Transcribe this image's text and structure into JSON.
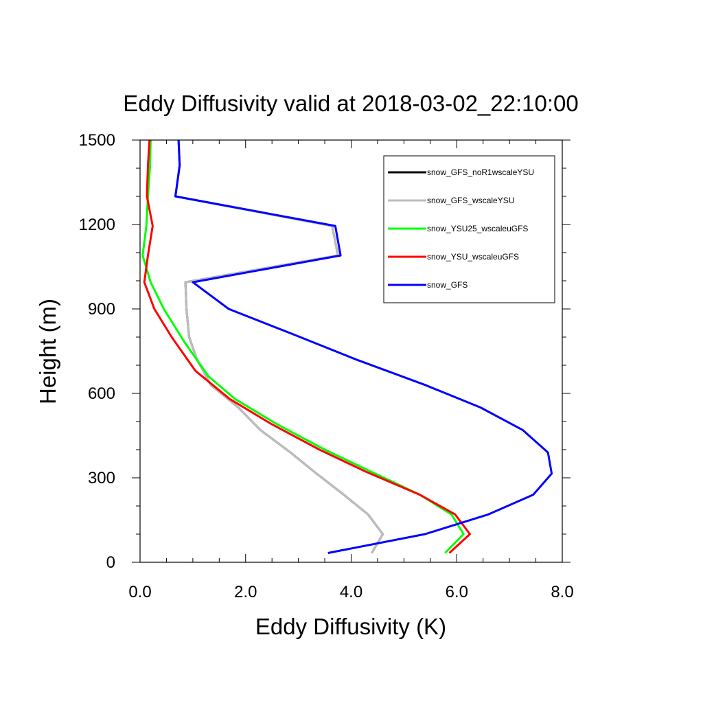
{
  "chart_data": {
    "type": "line",
    "title": "Eddy Diffusivity valid at 2018-03-02_22:10:00",
    "xlabel": "Eddy Diffusivity (K)",
    "ylabel": "Height (m)",
    "xlim": [
      0,
      8
    ],
    "ylim": [
      0,
      1500
    ],
    "x_ticks": [
      0,
      2,
      4,
      6,
      8
    ],
    "x_tick_labels": [
      "0.0",
      "2.0",
      "4.0",
      "6.0",
      "8.0"
    ],
    "x_minor_step": 0.5,
    "y_ticks": [
      0,
      300,
      600,
      900,
      1200,
      1500
    ],
    "y_tick_labels": [
      "0",
      "300",
      "600",
      "900",
      "1200",
      "1500"
    ],
    "y_minor_step": 100,
    "grid": false,
    "legend_position": "top-right",
    "series": [
      {
        "name": "snow_GFS_noR1wscaleYSU",
        "color": "#000000",
        "points": [
          [
            4.39,
            33
          ],
          [
            4.6,
            100
          ],
          [
            4.32,
            170
          ],
          [
            3.86,
            240
          ],
          [
            3.31,
            320
          ],
          [
            2.85,
            390
          ],
          [
            2.28,
            470
          ],
          [
            1.86,
            550
          ],
          [
            1.34,
            630
          ],
          [
            1.08,
            720
          ],
          [
            0.93,
            800
          ],
          [
            0.88,
            900
          ],
          [
            0.86,
            995
          ],
          [
            3.75,
            1090
          ],
          [
            3.64,
            1195
          ],
          [
            0.67,
            1300
          ],
          [
            0.75,
            1410
          ],
          [
            0.73,
            1500
          ]
        ]
      },
      {
        "name": "snow_GFS_wscaleYSU",
        "color": "#bdbdbd",
        "points": [
          [
            4.39,
            33
          ],
          [
            4.6,
            100
          ],
          [
            4.32,
            170
          ],
          [
            3.86,
            240
          ],
          [
            3.31,
            320
          ],
          [
            2.85,
            390
          ],
          [
            2.28,
            470
          ],
          [
            1.86,
            550
          ],
          [
            1.34,
            630
          ],
          [
            1.08,
            720
          ],
          [
            0.93,
            800
          ],
          [
            0.88,
            900
          ],
          [
            0.86,
            995
          ],
          [
            3.75,
            1090
          ],
          [
            3.64,
            1195
          ],
          [
            0.67,
            1300
          ],
          [
            0.75,
            1410
          ],
          [
            0.73,
            1500
          ]
        ]
      },
      {
        "name": "snow_YSU25_wscaleuGFS",
        "color": "#00ff00",
        "points": [
          [
            5.78,
            33
          ],
          [
            6.13,
            100
          ],
          [
            5.9,
            170
          ],
          [
            5.3,
            240
          ],
          [
            4.4,
            320
          ],
          [
            3.5,
            400
          ],
          [
            2.6,
            490
          ],
          [
            1.8,
            580
          ],
          [
            1.3,
            660
          ],
          [
            0.85,
            780
          ],
          [
            0.45,
            900
          ],
          [
            0.2,
            995
          ],
          [
            0.05,
            1090
          ],
          [
            0.12,
            1195
          ],
          [
            0.15,
            1300
          ],
          [
            0.19,
            1410
          ],
          [
            0.2,
            1500
          ]
        ]
      },
      {
        "name": "snow_YSU_wscaleuGFS",
        "color": "#ff0000",
        "points": [
          [
            5.86,
            33
          ],
          [
            6.25,
            100
          ],
          [
            5.97,
            170
          ],
          [
            5.3,
            240
          ],
          [
            4.3,
            320
          ],
          [
            3.4,
            400
          ],
          [
            2.5,
            490
          ],
          [
            1.7,
            580
          ],
          [
            1.05,
            680
          ],
          [
            0.6,
            800
          ],
          [
            0.27,
            900
          ],
          [
            0.08,
            995
          ],
          [
            0.15,
            1090
          ],
          [
            0.24,
            1195
          ],
          [
            0.13,
            1300
          ],
          [
            0.15,
            1410
          ],
          [
            0.18,
            1500
          ]
        ]
      },
      {
        "name": "snow_GFS",
        "color": "#0000ff",
        "points": [
          [
            3.56,
            33
          ],
          [
            5.4,
            100
          ],
          [
            6.6,
            170
          ],
          [
            7.45,
            240
          ],
          [
            7.8,
            315
          ],
          [
            7.73,
            390
          ],
          [
            7.25,
            470
          ],
          [
            6.45,
            550
          ],
          [
            5.4,
            630
          ],
          [
            4.1,
            720
          ],
          [
            2.9,
            810
          ],
          [
            1.68,
            900
          ],
          [
            1.0,
            995
          ],
          [
            3.8,
            1090
          ],
          [
            3.7,
            1195
          ],
          [
            0.67,
            1300
          ],
          [
            0.75,
            1410
          ],
          [
            0.73,
            1500
          ]
        ]
      }
    ]
  }
}
